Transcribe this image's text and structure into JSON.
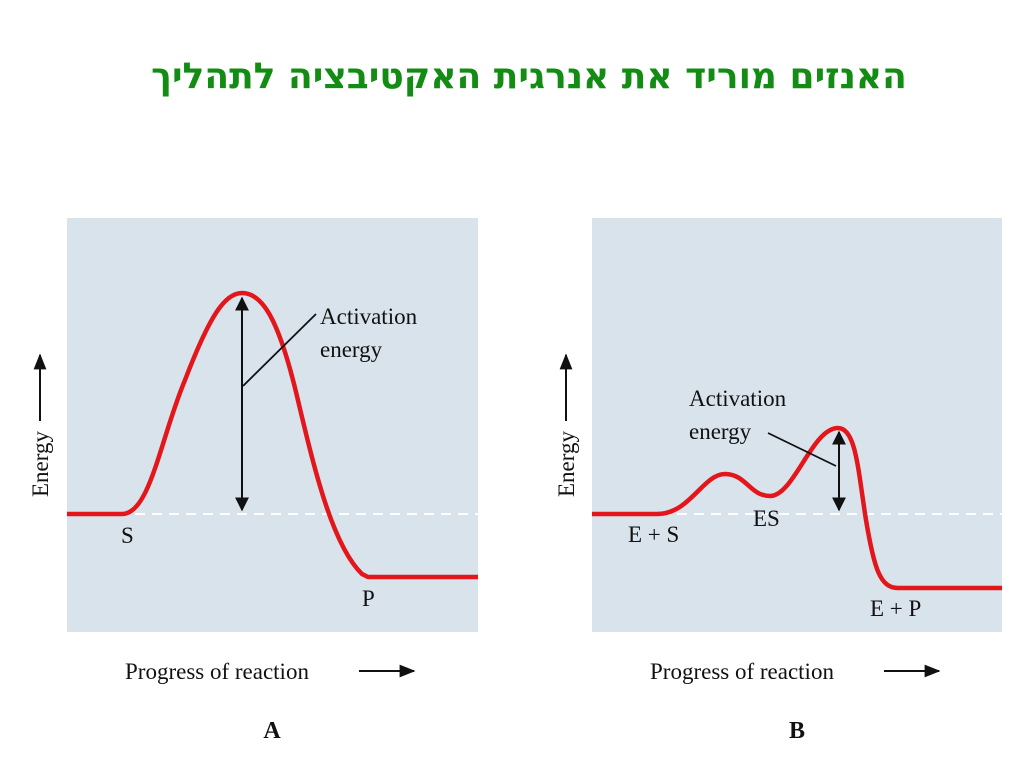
{
  "slide": {
    "title": "האנזים מוריד את אנרגית האקטיבציה לתהליך"
  },
  "diagrams": [
    {
      "id": "A",
      "panel_label": "A",
      "y_axis_label": "Energy",
      "x_axis_label": "Progress of reaction",
      "annotation_line1": "Activation",
      "annotation_line2": "energy",
      "states": [
        "S",
        "P"
      ]
    },
    {
      "id": "B",
      "panel_label": "B",
      "y_axis_label": "Energy",
      "x_axis_label": "Progress of reaction",
      "annotation_line1": "Activation",
      "annotation_line2": "energy",
      "states": [
        "E + S",
        "ES",
        "E + P"
      ]
    }
  ],
  "colors": {
    "title": "#128c12",
    "panel_background": "#d8e3ec",
    "curve": "#e3161b",
    "baseline_dash": "#ffffff",
    "text": "#111111"
  }
}
